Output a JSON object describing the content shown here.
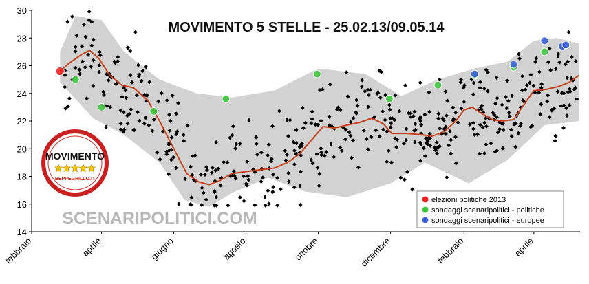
{
  "chart_data": {
    "type": "scatter",
    "title": "MOVIMENTO 5 STELLE - 25.02.13/09.05.14",
    "xlabel": "",
    "ylabel": "",
    "xlim": [
      "2013-02-01",
      "2014-05-10"
    ],
    "ylim": [
      14,
      30
    ],
    "yticks": [
      14,
      16,
      18,
      20,
      22,
      24,
      26,
      28,
      30
    ],
    "xticks": [
      {
        "label": "febbraio",
        "date": "2013-02-01"
      },
      {
        "label": "aprile",
        "date": "2013-04-01"
      },
      {
        "label": "giugno",
        "date": "2013-06-01"
      },
      {
        "label": "agosto",
        "date": "2013-08-01"
      },
      {
        "label": "ottobre",
        "date": "2013-10-01"
      },
      {
        "label": "dicembre",
        "date": "2013-12-01"
      },
      {
        "label": "febbraio",
        "date": "2014-02-01"
      },
      {
        "label": "aprile",
        "date": "2014-04-01"
      }
    ],
    "grid": false,
    "legend_position": "bottom-right",
    "colors": {
      "band": "#d2d2d2",
      "trend": "#c8401a",
      "elezioni": "#ee2020",
      "politiche": "#3fc83f",
      "europee": "#3a5fd8",
      "polls": "#000000"
    },
    "series": [
      {
        "name": "elezioni politiche 2013",
        "points": [
          {
            "x": "2013-02-25",
            "y": 25.6
          }
        ]
      },
      {
        "name": "sondaggi scenaripolitici - politiche",
        "points": [
          {
            "x": "2013-03-10",
            "y": 25.0
          },
          {
            "x": "2013-04-01",
            "y": 23.0
          },
          {
            "x": "2013-05-15",
            "y": 22.7
          },
          {
            "x": "2013-07-15",
            "y": 23.6
          },
          {
            "x": "2013-09-30",
            "y": 25.4
          },
          {
            "x": "2013-11-30",
            "y": 23.6
          },
          {
            "x": "2014-01-10",
            "y": 24.6
          },
          {
            "x": "2014-02-10",
            "y": 25.3
          },
          {
            "x": "2014-03-15",
            "y": 25.9
          },
          {
            "x": "2014-04-10",
            "y": 27.0
          }
        ]
      },
      {
        "name": "sondaggi scenaripolitici - europee",
        "points": [
          {
            "x": "2014-02-10",
            "y": 25.4
          },
          {
            "x": "2014-03-15",
            "y": 26.1
          },
          {
            "x": "2014-04-10",
            "y": 27.8
          },
          {
            "x": "2014-04-25",
            "y": 27.4
          },
          {
            "x": "2014-04-28",
            "y": 27.5
          }
        ]
      },
      {
        "name": "trend",
        "points": [
          {
            "x": "2013-02-25",
            "y": 25.6
          },
          {
            "x": "2013-03-05",
            "y": 26.2
          },
          {
            "x": "2013-03-15",
            "y": 26.8
          },
          {
            "x": "2013-03-22",
            "y": 27.1
          },
          {
            "x": "2013-03-30",
            "y": 26.5
          },
          {
            "x": "2013-04-08",
            "y": 25.3
          },
          {
            "x": "2013-04-18",
            "y": 24.6
          },
          {
            "x": "2013-04-28",
            "y": 24.4
          },
          {
            "x": "2013-05-10",
            "y": 23.5
          },
          {
            "x": "2013-05-20",
            "y": 22.0
          },
          {
            "x": "2013-06-01",
            "y": 20.0
          },
          {
            "x": "2013-06-12",
            "y": 18.2
          },
          {
            "x": "2013-06-22",
            "y": 17.6
          },
          {
            "x": "2013-07-01",
            "y": 17.4
          },
          {
            "x": "2013-07-10",
            "y": 17.7
          },
          {
            "x": "2013-07-20",
            "y": 18.2
          },
          {
            "x": "2013-08-05",
            "y": 18.4
          },
          {
            "x": "2013-08-25",
            "y": 18.6
          },
          {
            "x": "2013-09-05",
            "y": 19.0
          },
          {
            "x": "2013-09-15",
            "y": 19.6
          },
          {
            "x": "2013-09-25",
            "y": 20.6
          },
          {
            "x": "2013-10-05",
            "y": 21.6
          },
          {
            "x": "2013-10-15",
            "y": 21.5
          },
          {
            "x": "2013-10-25",
            "y": 21.7
          },
          {
            "x": "2013-11-05",
            "y": 21.9
          },
          {
            "x": "2013-11-15",
            "y": 22.2
          },
          {
            "x": "2013-11-25",
            "y": 21.8
          },
          {
            "x": "2013-12-02",
            "y": 21.1
          },
          {
            "x": "2013-12-15",
            "y": 21.1
          },
          {
            "x": "2013-12-28",
            "y": 21.0
          },
          {
            "x": "2014-01-05",
            "y": 20.9
          },
          {
            "x": "2014-01-15",
            "y": 21.2
          },
          {
            "x": "2014-01-25",
            "y": 22.0
          },
          {
            "x": "2014-02-01",
            "y": 22.8
          },
          {
            "x": "2014-02-08",
            "y": 23.0
          },
          {
            "x": "2014-02-15",
            "y": 22.6
          },
          {
            "x": "2014-02-25",
            "y": 22.1
          },
          {
            "x": "2014-03-05",
            "y": 22.0
          },
          {
            "x": "2014-03-15",
            "y": 22.1
          },
          {
            "x": "2014-03-22",
            "y": 23.0
          },
          {
            "x": "2014-04-01",
            "y": 24.2
          },
          {
            "x": "2014-04-12",
            "y": 24.3
          },
          {
            "x": "2014-04-22",
            "y": 24.5
          },
          {
            "x": "2014-05-01",
            "y": 24.8
          },
          {
            "x": "2014-05-09",
            "y": 25.3
          }
        ]
      },
      {
        "name": "band_upper",
        "points": [
          {
            "x": "2013-02-25",
            "y": 27.0
          },
          {
            "x": "2013-03-10",
            "y": 29.6
          },
          {
            "x": "2013-04-01",
            "y": 29.3
          },
          {
            "x": "2013-04-20",
            "y": 27.0
          },
          {
            "x": "2013-05-20",
            "y": 25.0
          },
          {
            "x": "2013-06-20",
            "y": 24.0
          },
          {
            "x": "2013-07-20",
            "y": 23.7
          },
          {
            "x": "2013-08-25",
            "y": 24.2
          },
          {
            "x": "2013-10-01",
            "y": 25.8
          },
          {
            "x": "2013-11-10",
            "y": 25.4
          },
          {
            "x": "2013-12-10",
            "y": 23.8
          },
          {
            "x": "2014-01-10",
            "y": 25.0
          },
          {
            "x": "2014-02-10",
            "y": 25.8
          },
          {
            "x": "2014-03-10",
            "y": 26.3
          },
          {
            "x": "2014-04-01",
            "y": 27.8
          },
          {
            "x": "2014-04-20",
            "y": 28.0
          },
          {
            "x": "2014-05-09",
            "y": 27.6
          }
        ]
      },
      {
        "name": "band_lower",
        "points": [
          {
            "x": "2013-02-25",
            "y": 24.8
          },
          {
            "x": "2013-03-25",
            "y": 22.2
          },
          {
            "x": "2013-04-20",
            "y": 21.0
          },
          {
            "x": "2013-05-20",
            "y": 19.0
          },
          {
            "x": "2013-06-10",
            "y": 16.3
          },
          {
            "x": "2013-07-01",
            "y": 15.8
          },
          {
            "x": "2013-07-20",
            "y": 16.8
          },
          {
            "x": "2013-08-20",
            "y": 17.9
          },
          {
            "x": "2013-09-20",
            "y": 16.9
          },
          {
            "x": "2013-10-25",
            "y": 16.5
          },
          {
            "x": "2013-12-01",
            "y": 17.5
          },
          {
            "x": "2013-12-30",
            "y": 19.0
          },
          {
            "x": "2014-02-05",
            "y": 17.5
          },
          {
            "x": "2014-03-10",
            "y": 19.2
          },
          {
            "x": "2014-04-10",
            "y": 21.7
          },
          {
            "x": "2014-05-09",
            "y": 22.0
          }
        ]
      }
    ],
    "annotations": [
      "SCENARIPOLITICI.COM"
    ],
    "logo": {
      "main": "MOVIMENTO",
      "sub": "BEPPEGRILLO.IT"
    }
  }
}
